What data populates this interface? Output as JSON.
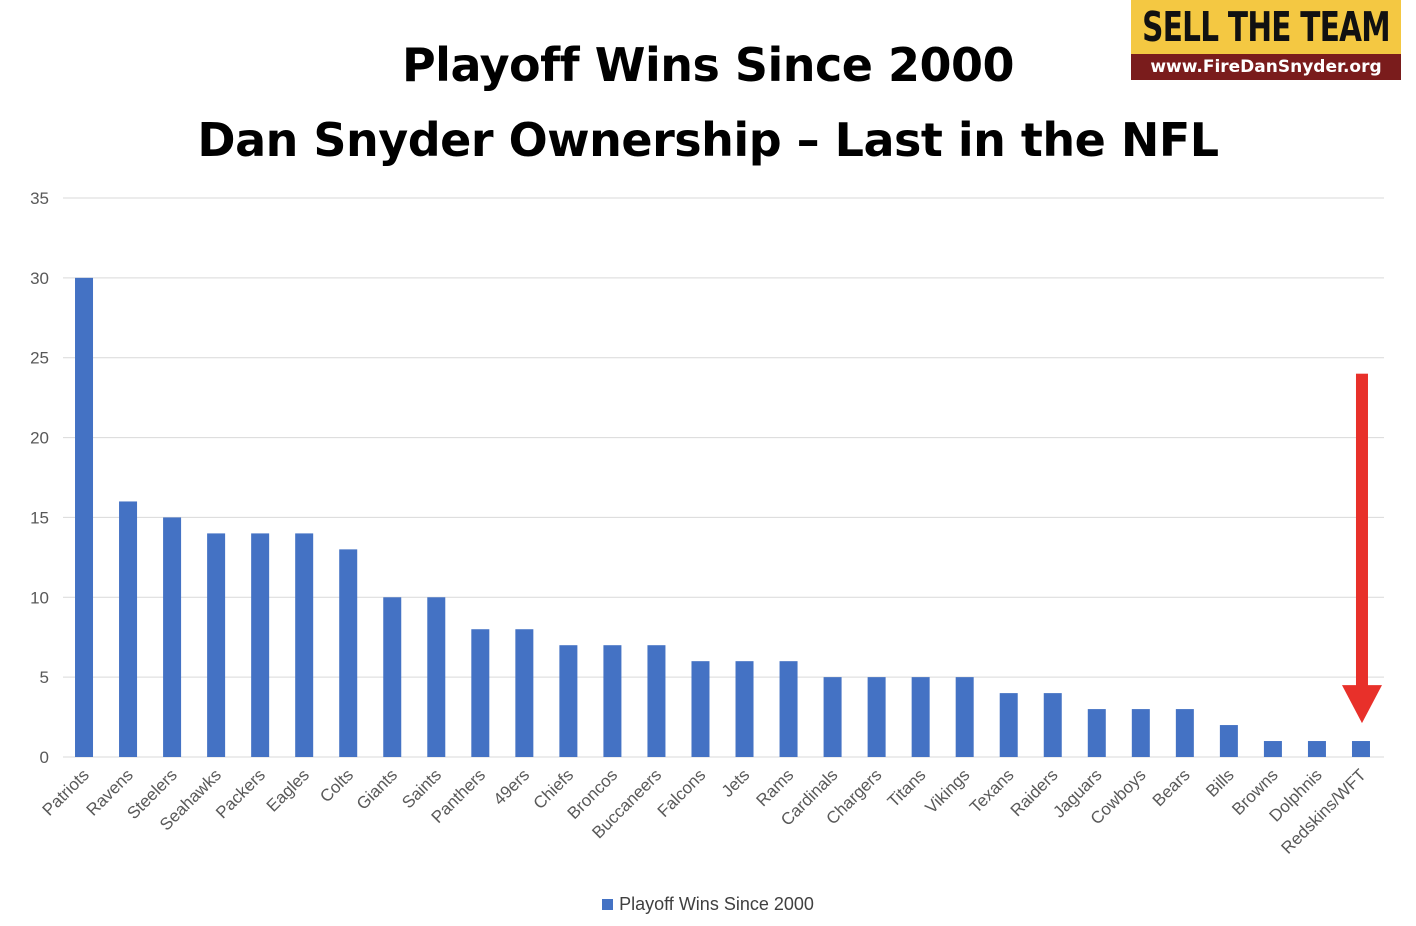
{
  "title": {
    "line1": "Playoff Wins Since 2000",
    "line2": "Dan Snyder Ownership – Last in the NFL"
  },
  "badge": {
    "headline": "SELL THE TEAM",
    "url": "www.FireDanSnyder.org"
  },
  "colors": {
    "bar": "#4472c4",
    "gridline": "#d9d9d9",
    "arrow": "#e8302a"
  },
  "chart_data": {
    "type": "bar",
    "title": "Playoff Wins Since 2000",
    "xlabel": "",
    "ylabel": "",
    "ylim": [
      0,
      35
    ],
    "yticks": [
      0,
      5,
      10,
      15,
      20,
      25,
      30,
      35
    ],
    "grid": true,
    "legend_position": "bottom",
    "categories": [
      "Patriots",
      "Ravens",
      "Steelers",
      "Seahawks",
      "Packers",
      "Eagles",
      "Colts",
      "Giants",
      "Saints",
      "Panthers",
      "49ers",
      "Chiefs",
      "Broncos",
      "Buccaneers",
      "Falcons",
      "Jets",
      "Rams",
      "Cardinals",
      "Chargers",
      "Titans",
      "Vikings",
      "Texans",
      "Raiders",
      "Jaguars",
      "Cowboys",
      "Bears",
      "Bills",
      "Browns",
      "Dolphnis",
      "Redskins/WFT"
    ],
    "series": [
      {
        "name": "Playoff Wins Since 2000",
        "values": [
          30,
          16,
          15,
          14,
          14,
          14,
          13,
          10,
          10,
          8,
          8,
          7,
          7,
          7,
          6,
          6,
          6,
          5,
          5,
          5,
          5,
          4,
          4,
          3,
          3,
          3,
          2,
          1,
          1,
          1
        ]
      }
    ],
    "annotation": {
      "type": "arrow-down",
      "target_category": "Redskins/WFT",
      "from_value": 24,
      "to_value": 3
    }
  }
}
